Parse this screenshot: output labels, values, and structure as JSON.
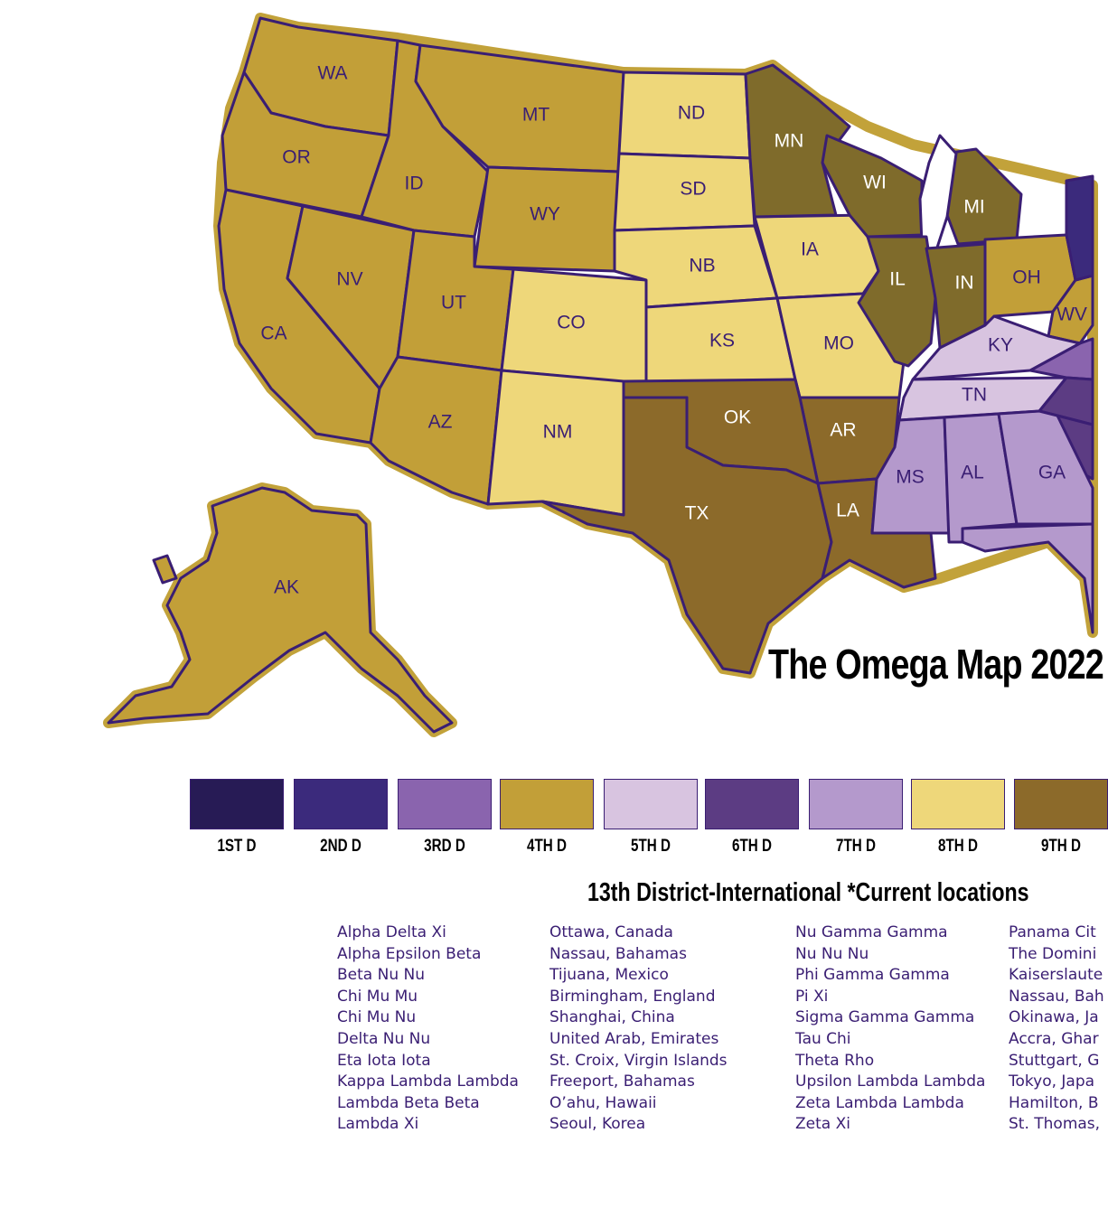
{
  "colors": {
    "d1": "#271b55",
    "d2": "#3b2a7c",
    "d3": "#8a64ae",
    "d4": "#c29f38",
    "d5": "#d8c4e0",
    "d6": "#5c3c83",
    "d7": "#b499cc",
    "d8": "#eed77a",
    "d9": "#8c6a2a",
    "d10": "#7f6b2b",
    "outline": "#3a1e73",
    "border": "#c2a23a",
    "lake": "#ffffff"
  },
  "map": {
    "title": "The Omega Map 2022",
    "states": [
      {
        "abbr": "WA",
        "district": "d4"
      },
      {
        "abbr": "OR",
        "district": "d4"
      },
      {
        "abbr": "CA",
        "district": "d4"
      },
      {
        "abbr": "ID",
        "district": "d4"
      },
      {
        "abbr": "NV",
        "district": "d4"
      },
      {
        "abbr": "MT",
        "district": "d4"
      },
      {
        "abbr": "WY",
        "district": "d4"
      },
      {
        "abbr": "UT",
        "district": "d4"
      },
      {
        "abbr": "AZ",
        "district": "d4"
      },
      {
        "abbr": "AK",
        "district": "d4"
      },
      {
        "abbr": "CO",
        "district": "d8"
      },
      {
        "abbr": "NM",
        "district": "d8"
      },
      {
        "abbr": "ND",
        "district": "d8"
      },
      {
        "abbr": "SD",
        "district": "d8"
      },
      {
        "abbr": "NB",
        "district": "d8"
      },
      {
        "abbr": "KS",
        "district": "d8"
      },
      {
        "abbr": "IA",
        "district": "d8"
      },
      {
        "abbr": "MO",
        "district": "d8"
      },
      {
        "abbr": "MN",
        "district": "d10"
      },
      {
        "abbr": "WI",
        "district": "d10"
      },
      {
        "abbr": "MI",
        "district": "d10"
      },
      {
        "abbr": "IL",
        "district": "d10"
      },
      {
        "abbr": "IN",
        "district": "d10"
      },
      {
        "abbr": "OK",
        "district": "d9"
      },
      {
        "abbr": "TX",
        "district": "d9"
      },
      {
        "abbr": "AR",
        "district": "d9"
      },
      {
        "abbr": "LA",
        "district": "d9"
      },
      {
        "abbr": "OH",
        "district": "d4"
      },
      {
        "abbr": "WV",
        "district": "d4"
      },
      {
        "abbr": "KY",
        "district": "d5"
      },
      {
        "abbr": "TN",
        "district": "d5"
      },
      {
        "abbr": "MS",
        "district": "d7"
      },
      {
        "abbr": "AL",
        "district": "d7"
      },
      {
        "abbr": "GA",
        "district": "d7"
      }
    ]
  },
  "legend": [
    {
      "label": "1ST D",
      "color": "#271b55"
    },
    {
      "label": "2ND D",
      "color": "#3b2a7c"
    },
    {
      "label": "3RD D",
      "color": "#8a64ae"
    },
    {
      "label": "4TH D",
      "color": "#c29f38"
    },
    {
      "label": "5TH D",
      "color": "#d8c4e0"
    },
    {
      "label": "6TH D",
      "color": "#5c3c83"
    },
    {
      "label": "7TH D",
      "color": "#b499cc"
    },
    {
      "label": "8TH D",
      "color": "#eed77a"
    },
    {
      "label": "9TH D",
      "color": "#8c6a2a"
    }
  ],
  "international": {
    "heading": "13th District-International *Current locations",
    "columns": [
      [
        "Alpha Delta Xi",
        "Alpha Epsilon Beta",
        "Beta Nu Nu",
        "Chi Mu Mu",
        "Chi Mu Nu",
        "Delta Nu Nu",
        "Eta Iota Iota",
        "Kappa Lambda Lambda",
        "Lambda Beta Beta",
        "Lambda Xi"
      ],
      [
        "Ottawa, Canada",
        "Nassau, Bahamas",
        "Tijuana, Mexico",
        "Birmingham, England",
        "Shanghai, China",
        "United Arab, Emirates",
        "St. Croix, Virgin Islands",
        "Freeport, Bahamas",
        "O’ahu, Hawaii",
        "Seoul, Korea"
      ],
      [
        "Nu Gamma Gamma",
        "Nu Nu Nu",
        "Phi Gamma Gamma",
        "Pi Xi",
        "Sigma Gamma Gamma",
        "Tau Chi",
        "Theta Rho",
        "Upsilon Lambda Lambda",
        "Zeta Lambda Lambda",
        "Zeta Xi"
      ],
      [
        "Panama Cit",
        "The Domini",
        "Kaiserslaute",
        "Nassau, Bah",
        "Okinawa, Ja",
        "Accra, Ghar",
        "Stuttgart, G",
        "Tokyo, Japa",
        "Hamilton, B",
        "St. Thomas,"
      ]
    ]
  }
}
